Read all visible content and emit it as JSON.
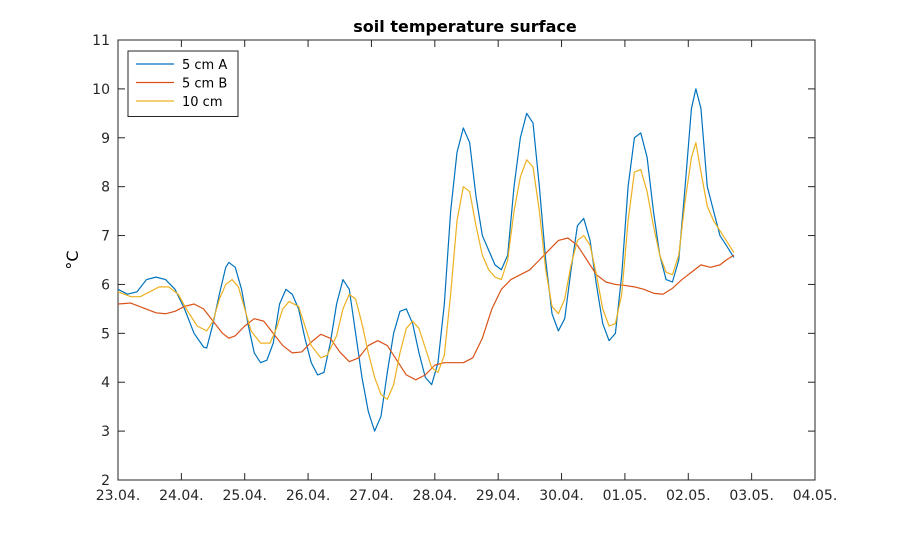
{
  "chart_data": {
    "type": "line",
    "title": "soil temperature surface",
    "xlabel": "",
    "ylabel": "°C",
    "ylim": [
      2,
      11
    ],
    "yticks": [
      2,
      3,
      4,
      5,
      6,
      7,
      8,
      9,
      10,
      11
    ],
    "xlim": [
      0,
      11
    ],
    "xtick_values": [
      0,
      1,
      2,
      3,
      4,
      5,
      6,
      7,
      8,
      9,
      10,
      11
    ],
    "xtick_labels": [
      "23.04.",
      "24.04.",
      "25.04.",
      "26.04.",
      "27.04.",
      "28.04.",
      "29.04.",
      "30.04.",
      "01.05.",
      "02.05.",
      "03.05.",
      "04.05."
    ],
    "grid": false,
    "legend_position": "top-left",
    "series": [
      {
        "name": "5 cm A",
        "color": "#0072BD",
        "points": [
          [
            0.0,
            5.9
          ],
          [
            0.15,
            5.8
          ],
          [
            0.3,
            5.85
          ],
          [
            0.45,
            6.1
          ],
          [
            0.6,
            6.15
          ],
          [
            0.75,
            6.1
          ],
          [
            0.9,
            5.9
          ],
          [
            1.05,
            5.5
          ],
          [
            1.2,
            5.0
          ],
          [
            1.35,
            4.72
          ],
          [
            1.4,
            4.7
          ],
          [
            1.5,
            5.2
          ],
          [
            1.6,
            5.8
          ],
          [
            1.7,
            6.35
          ],
          [
            1.75,
            6.45
          ],
          [
            1.85,
            6.35
          ],
          [
            1.95,
            5.9
          ],
          [
            2.05,
            5.2
          ],
          [
            2.15,
            4.6
          ],
          [
            2.25,
            4.4
          ],
          [
            2.35,
            4.45
          ],
          [
            2.45,
            4.8
          ],
          [
            2.55,
            5.6
          ],
          [
            2.65,
            5.9
          ],
          [
            2.75,
            5.8
          ],
          [
            2.85,
            5.5
          ],
          [
            2.95,
            4.9
          ],
          [
            3.05,
            4.4
          ],
          [
            3.15,
            4.15
          ],
          [
            3.25,
            4.2
          ],
          [
            3.35,
            4.8
          ],
          [
            3.45,
            5.6
          ],
          [
            3.55,
            6.1
          ],
          [
            3.65,
            5.9
          ],
          [
            3.75,
            5.0
          ],
          [
            3.85,
            4.1
          ],
          [
            3.95,
            3.4
          ],
          [
            4.05,
            3.0
          ],
          [
            4.15,
            3.3
          ],
          [
            4.25,
            4.2
          ],
          [
            4.35,
            5.0
          ],
          [
            4.45,
            5.45
          ],
          [
            4.55,
            5.5
          ],
          [
            4.65,
            5.2
          ],
          [
            4.75,
            4.6
          ],
          [
            4.85,
            4.1
          ],
          [
            4.95,
            3.95
          ],
          [
            5.05,
            4.4
          ],
          [
            5.15,
            5.6
          ],
          [
            5.25,
            7.5
          ],
          [
            5.35,
            8.7
          ],
          [
            5.45,
            9.2
          ],
          [
            5.55,
            8.9
          ],
          [
            5.65,
            7.8
          ],
          [
            5.75,
            7.0
          ],
          [
            5.85,
            6.7
          ],
          [
            5.95,
            6.4
          ],
          [
            6.05,
            6.3
          ],
          [
            6.15,
            6.6
          ],
          [
            6.25,
            8.0
          ],
          [
            6.35,
            9.0
          ],
          [
            6.45,
            9.5
          ],
          [
            6.55,
            9.3
          ],
          [
            6.65,
            8.0
          ],
          [
            6.75,
            6.5
          ],
          [
            6.85,
            5.4
          ],
          [
            6.95,
            5.05
          ],
          [
            7.05,
            5.3
          ],
          [
            7.15,
            6.3
          ],
          [
            7.25,
            7.2
          ],
          [
            7.35,
            7.35
          ],
          [
            7.45,
            6.9
          ],
          [
            7.55,
            6.0
          ],
          [
            7.65,
            5.2
          ],
          [
            7.75,
            4.85
          ],
          [
            7.85,
            5.0
          ],
          [
            7.95,
            6.2
          ],
          [
            8.05,
            8.0
          ],
          [
            8.15,
            9.0
          ],
          [
            8.25,
            9.1
          ],
          [
            8.35,
            8.6
          ],
          [
            8.45,
            7.5
          ],
          [
            8.55,
            6.6
          ],
          [
            8.65,
            6.1
          ],
          [
            8.75,
            6.05
          ],
          [
            8.85,
            6.5
          ],
          [
            8.95,
            8.0
          ],
          [
            9.05,
            9.6
          ],
          [
            9.12,
            10.0
          ],
          [
            9.2,
            9.6
          ],
          [
            9.3,
            8.0
          ],
          [
            9.4,
            7.5
          ],
          [
            9.5,
            7.0
          ],
          [
            9.6,
            6.8
          ],
          [
            9.72,
            6.55
          ]
        ]
      },
      {
        "name": "5 cm B",
        "color": "#D95319",
        "points": [
          [
            0.0,
            5.6
          ],
          [
            0.2,
            5.62
          ],
          [
            0.4,
            5.52
          ],
          [
            0.6,
            5.42
          ],
          [
            0.75,
            5.4
          ],
          [
            0.9,
            5.45
          ],
          [
            1.05,
            5.55
          ],
          [
            1.2,
            5.6
          ],
          [
            1.35,
            5.5
          ],
          [
            1.5,
            5.25
          ],
          [
            1.65,
            5.0
          ],
          [
            1.75,
            4.9
          ],
          [
            1.85,
            4.95
          ],
          [
            2.0,
            5.15
          ],
          [
            2.15,
            5.3
          ],
          [
            2.3,
            5.25
          ],
          [
            2.45,
            5.0
          ],
          [
            2.6,
            4.75
          ],
          [
            2.75,
            4.6
          ],
          [
            2.9,
            4.62
          ],
          [
            3.05,
            4.82
          ],
          [
            3.2,
            4.98
          ],
          [
            3.35,
            4.9
          ],
          [
            3.5,
            4.62
          ],
          [
            3.65,
            4.42
          ],
          [
            3.8,
            4.5
          ],
          [
            3.95,
            4.75
          ],
          [
            4.1,
            4.85
          ],
          [
            4.25,
            4.75
          ],
          [
            4.4,
            4.45
          ],
          [
            4.55,
            4.15
          ],
          [
            4.7,
            4.05
          ],
          [
            4.85,
            4.15
          ],
          [
            5.0,
            4.35
          ],
          [
            5.15,
            4.4
          ],
          [
            5.3,
            4.4
          ],
          [
            5.45,
            4.4
          ],
          [
            5.6,
            4.5
          ],
          [
            5.75,
            4.9
          ],
          [
            5.9,
            5.5
          ],
          [
            6.05,
            5.9
          ],
          [
            6.2,
            6.1
          ],
          [
            6.35,
            6.2
          ],
          [
            6.5,
            6.3
          ],
          [
            6.65,
            6.5
          ],
          [
            6.8,
            6.7
          ],
          [
            6.95,
            6.9
          ],
          [
            7.1,
            6.95
          ],
          [
            7.25,
            6.8
          ],
          [
            7.4,
            6.5
          ],
          [
            7.55,
            6.2
          ],
          [
            7.7,
            6.05
          ],
          [
            7.85,
            6.0
          ],
          [
            8.0,
            5.98
          ],
          [
            8.15,
            5.95
          ],
          [
            8.3,
            5.9
          ],
          [
            8.45,
            5.82
          ],
          [
            8.6,
            5.8
          ],
          [
            8.75,
            5.92
          ],
          [
            8.9,
            6.1
          ],
          [
            9.05,
            6.25
          ],
          [
            9.2,
            6.4
          ],
          [
            9.35,
            6.35
          ],
          [
            9.5,
            6.4
          ],
          [
            9.6,
            6.5
          ],
          [
            9.72,
            6.6
          ]
        ]
      },
      {
        "name": "10 cm",
        "color": "#EDB120",
        "points": [
          [
            0.0,
            5.85
          ],
          [
            0.2,
            5.75
          ],
          [
            0.35,
            5.75
          ],
          [
            0.5,
            5.85
          ],
          [
            0.65,
            5.95
          ],
          [
            0.8,
            5.95
          ],
          [
            0.95,
            5.8
          ],
          [
            1.1,
            5.45
          ],
          [
            1.25,
            5.15
          ],
          [
            1.4,
            5.05
          ],
          [
            1.5,
            5.25
          ],
          [
            1.6,
            5.7
          ],
          [
            1.7,
            6.0
          ],
          [
            1.8,
            6.1
          ],
          [
            1.9,
            5.95
          ],
          [
            2.0,
            5.5
          ],
          [
            2.1,
            5.05
          ],
          [
            2.25,
            4.8
          ],
          [
            2.4,
            4.8
          ],
          [
            2.5,
            5.1
          ],
          [
            2.6,
            5.5
          ],
          [
            2.7,
            5.65
          ],
          [
            2.85,
            5.55
          ],
          [
            2.95,
            5.15
          ],
          [
            3.05,
            4.75
          ],
          [
            3.2,
            4.5
          ],
          [
            3.3,
            4.55
          ],
          [
            3.45,
            4.95
          ],
          [
            3.55,
            5.5
          ],
          [
            3.65,
            5.8
          ],
          [
            3.75,
            5.7
          ],
          [
            3.85,
            5.2
          ],
          [
            3.95,
            4.6
          ],
          [
            4.05,
            4.1
          ],
          [
            4.15,
            3.75
          ],
          [
            4.25,
            3.65
          ],
          [
            4.35,
            3.95
          ],
          [
            4.45,
            4.6
          ],
          [
            4.55,
            5.1
          ],
          [
            4.65,
            5.25
          ],
          [
            4.75,
            5.1
          ],
          [
            4.85,
            4.7
          ],
          [
            4.95,
            4.3
          ],
          [
            5.05,
            4.2
          ],
          [
            5.15,
            4.55
          ],
          [
            5.25,
            5.8
          ],
          [
            5.35,
            7.3
          ],
          [
            5.45,
            8.0
          ],
          [
            5.55,
            7.9
          ],
          [
            5.65,
            7.2
          ],
          [
            5.75,
            6.6
          ],
          [
            5.85,
            6.3
          ],
          [
            5.95,
            6.15
          ],
          [
            6.05,
            6.1
          ],
          [
            6.15,
            6.5
          ],
          [
            6.25,
            7.5
          ],
          [
            6.35,
            8.2
          ],
          [
            6.45,
            8.55
          ],
          [
            6.55,
            8.4
          ],
          [
            6.65,
            7.5
          ],
          [
            6.75,
            6.3
          ],
          [
            6.85,
            5.55
          ],
          [
            6.95,
            5.4
          ],
          [
            7.05,
            5.7
          ],
          [
            7.15,
            6.4
          ],
          [
            7.25,
            6.9
          ],
          [
            7.35,
            7.0
          ],
          [
            7.45,
            6.8
          ],
          [
            7.55,
            6.2
          ],
          [
            7.65,
            5.5
          ],
          [
            7.75,
            5.15
          ],
          [
            7.85,
            5.2
          ],
          [
            7.95,
            5.8
          ],
          [
            8.05,
            7.3
          ],
          [
            8.15,
            8.3
          ],
          [
            8.25,
            8.35
          ],
          [
            8.35,
            7.9
          ],
          [
            8.45,
            7.2
          ],
          [
            8.55,
            6.6
          ],
          [
            8.65,
            6.25
          ],
          [
            8.75,
            6.2
          ],
          [
            8.85,
            6.6
          ],
          [
            8.95,
            7.7
          ],
          [
            9.05,
            8.6
          ],
          [
            9.12,
            8.9
          ],
          [
            9.2,
            8.3
          ],
          [
            9.3,
            7.6
          ],
          [
            9.4,
            7.3
          ],
          [
            9.55,
            7.0
          ],
          [
            9.72,
            6.65
          ]
        ]
      }
    ]
  }
}
